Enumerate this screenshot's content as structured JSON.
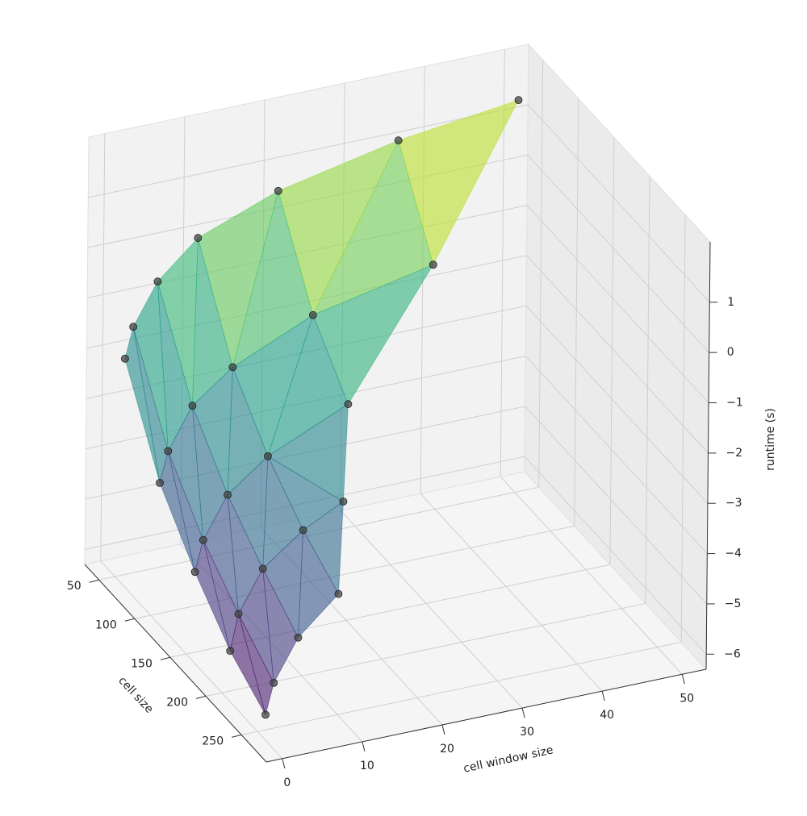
{
  "chart_data": {
    "type": "surface3d",
    "x_label": "cell size",
    "y_label": "cell window size",
    "z_label": "runtime (s)",
    "colormap": "viridis",
    "point_color": "#444444",
    "x": [
      50,
      50,
      50,
      50,
      50,
      50,
      50,
      100,
      100,
      100,
      100,
      100,
      100,
      150,
      150,
      150,
      150,
      150,
      200,
      200,
      200,
      200,
      200,
      250,
      250,
      250,
      250
    ],
    "y": [
      1,
      2,
      5,
      10,
      20,
      35,
      50,
      1,
      2,
      5,
      10,
      20,
      35,
      1,
      2,
      5,
      10,
      20,
      1,
      2,
      5,
      10,
      15,
      1,
      2,
      5,
      10
    ],
    "values": [
      -2.0,
      -1.4,
      -0.6,
      0.1,
      0.7,
      1.2,
      1.5,
      -3.7,
      -3.1,
      -2.3,
      -1.7,
      -1.0,
      -0.5,
      -4.7,
      -4.1,
      -3.3,
      -2.7,
      -2.0,
      -5.5,
      -4.8,
      -4.0,
      -3.4,
      -3.0,
      -6.0,
      -5.4,
      -4.6,
      -3.9
    ],
    "xlim": [
      30,
      285
    ],
    "ylim": [
      -2,
      53
    ],
    "zlim": [
      -6.3,
      2.2
    ],
    "xticks": [
      50,
      100,
      150,
      200,
      250
    ],
    "yticks": [
      0,
      10,
      20,
      30,
      40,
      50
    ],
    "zticks": [
      {
        "value": -6,
        "label": "−6"
      },
      {
        "value": -5,
        "label": "−5"
      },
      {
        "value": -4,
        "label": "−4"
      },
      {
        "value": -3,
        "label": "−3"
      },
      {
        "value": -2,
        "label": "−2"
      },
      {
        "value": -1,
        "label": "−1"
      },
      0,
      1
    ],
    "grid": true
  }
}
